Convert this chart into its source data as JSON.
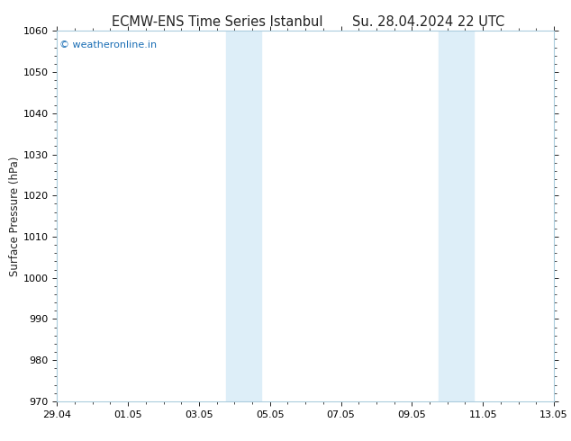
{
  "title_left": "ECMW-ENS Time Series Istanbul",
  "title_right": "Su. 28.04.2024 22 UTC",
  "ylabel": "Surface Pressure (hPa)",
  "ylim": [
    970,
    1060
  ],
  "yticks": [
    970,
    980,
    990,
    1000,
    1010,
    1020,
    1030,
    1040,
    1050,
    1060
  ],
  "xtick_labels": [
    "29.04",
    "01.05",
    "03.05",
    "05.05",
    "07.05",
    "09.05",
    "11.05",
    "13.05"
  ],
  "xtick_positions": [
    0,
    2,
    4,
    6,
    8,
    10,
    12,
    14
  ],
  "xlim": [
    0,
    14
  ],
  "shaded_bands": [
    {
      "xstart": 4.75,
      "xend": 5.75
    },
    {
      "xstart": 10.75,
      "xend": 11.75
    }
  ],
  "shaded_color": "#ddeef8",
  "watermark_text": "© weatheronline.in",
  "watermark_color": "#1a6eb5",
  "watermark_fontsize": 8,
  "bg_color": "#ffffff",
  "plot_bg_color": "#ffffff",
  "spine_color": "#aaccdd",
  "title_fontsize": 10.5,
  "axis_label_fontsize": 8.5,
  "tick_fontsize": 8,
  "figsize": [
    6.34,
    4.9
  ],
  "dpi": 100
}
